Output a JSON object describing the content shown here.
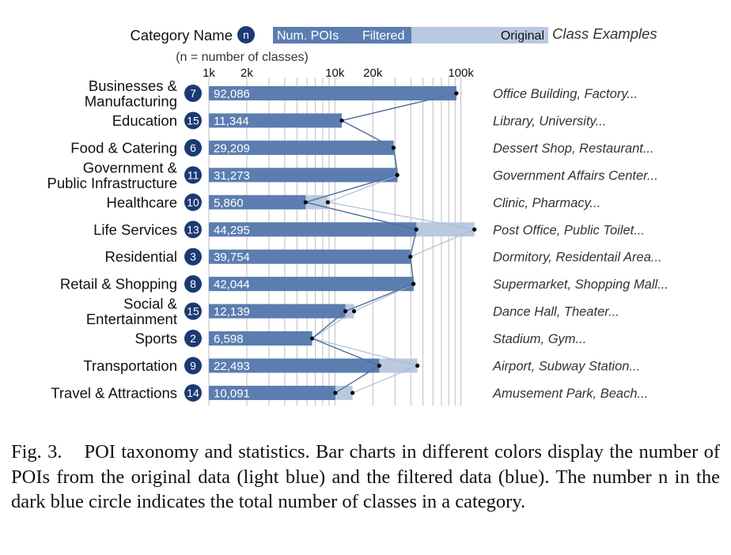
{
  "chart_data": {
    "type": "bar",
    "legend": {
      "category_name": "Category Name",
      "n_symbol": "n",
      "n_note": "(n = number of classes)",
      "num_pois": "Num. POIs",
      "filtered": "Filtered",
      "original": "Original",
      "class_examples": "Class Examples"
    },
    "x_scale": "log",
    "xlim": [
      1000,
      130000
    ],
    "ticks": [
      {
        "value": 1000,
        "label": "1k"
      },
      {
        "value": 2000,
        "label": "2k"
      },
      {
        "value": 10000,
        "label": "10k"
      },
      {
        "value": 20000,
        "label": "20k"
      },
      {
        "value": 100000,
        "label": "100k"
      }
    ],
    "gridlines": [
      1000,
      2000,
      3000,
      4000,
      5000,
      6000,
      7000,
      8000,
      9000,
      10000,
      20000,
      30000,
      40000,
      50000,
      60000,
      70000,
      80000,
      90000,
      100000
    ],
    "categories": [
      {
        "name": "Businesses & Manufacturing",
        "lines": [
          "Businesses &",
          "Manufacturing"
        ],
        "n": "7",
        "filtered": 92086,
        "filtered_label": "92,086",
        "original": 92086,
        "examples": "Office Building, Factory..."
      },
      {
        "name": "Education",
        "lines": [
          "Education"
        ],
        "n": "15",
        "filtered": 11344,
        "filtered_label": "11,344",
        "original": 11344,
        "examples": "Library, University..."
      },
      {
        "name": "Food & Catering",
        "lines": [
          "Food & Catering"
        ],
        "n": "6",
        "filtered": 29209,
        "filtered_label": "29,209",
        "original": 29500,
        "examples": "Dessert Shop, Restaurant..."
      },
      {
        "name": "Government & Public Infrastructure",
        "lines": [
          "Government &",
          "Public Infrastructure"
        ],
        "n": "11",
        "filtered": 31273,
        "filtered_label": "31,273",
        "original": 31800,
        "examples": "Government Affairs Center..."
      },
      {
        "name": "Healthcare",
        "lines": [
          "Healthcare"
        ],
        "n": "10",
        "filtered": 5860,
        "filtered_label": "5,860",
        "original": 8800,
        "examples": "Clinic, Pharmacy..."
      },
      {
        "name": "Life Services",
        "lines": [
          "Life Services"
        ],
        "n": "13",
        "filtered": 44295,
        "filtered_label": "44,295",
        "original": 128000,
        "examples": "Post Office, Public Toilet..."
      },
      {
        "name": "Residential",
        "lines": [
          "Residential"
        ],
        "n": "3",
        "filtered": 39754,
        "filtered_label": "39,754",
        "original": 39754,
        "examples": "Dormitory, Residentail Area..."
      },
      {
        "name": "Retail & Shopping",
        "lines": [
          "Retail & Shopping"
        ],
        "n": "8",
        "filtered": 42044,
        "filtered_label": "42,044",
        "original": 42300,
        "examples": "Supermarket, Shopping Mall..."
      },
      {
        "name": "Social & Entertainment",
        "lines": [
          "Social &",
          "Entertainment"
        ],
        "n": "15",
        "filtered": 12139,
        "filtered_label": "12,139",
        "original": 14200,
        "examples": "Dance Hall, Theater..."
      },
      {
        "name": "Sports",
        "lines": [
          "Sports"
        ],
        "n": "2",
        "filtered": 6598,
        "filtered_label": "6,598",
        "original": 6598,
        "examples": "Stadium, Gym..."
      },
      {
        "name": "Transportation",
        "lines": [
          "Transportation"
        ],
        "n": "9",
        "filtered": 22493,
        "filtered_label": "22,493",
        "original": 45200,
        "examples": "Airport, Subway Station..."
      },
      {
        "name": "Travel & Attractions",
        "lines": [
          "Travel & Attractions"
        ],
        "n": "14",
        "filtered": 10091,
        "filtered_label": "10,091",
        "original": 13800,
        "examples": "Amusement Park, Beach..."
      }
    ],
    "colors": {
      "filtered": "#5b7db0",
      "original": "#b9c9df",
      "circle": "#1b3a73",
      "grid": "#bdbdbd",
      "filtered_line": "#4f6f9f",
      "original_line": "#a9bcd6",
      "dot": "#000000"
    }
  },
  "caption": {
    "fig": "Fig. 3.",
    "text": "POI taxonomy and statistics. Bar charts in different colors display the number of POIs from the original data (light blue) and the filtered data (blue). The number n in the dark blue circle indicates the total number of classes in a category."
  }
}
